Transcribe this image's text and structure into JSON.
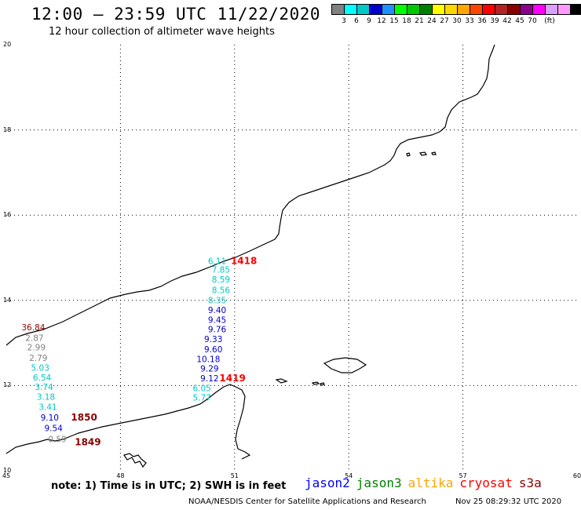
{
  "header": {
    "title": "12:00 — 23:59 UTC 11/22/2020",
    "subtitle": "12 hour collection of altimeter wave heights"
  },
  "legend": {
    "unit": "(ft)",
    "colors": [
      "#808080",
      "#00ffff",
      "#00c8c8",
      "#0000cd",
      "#1e90ff",
      "#00ff00",
      "#00c800",
      "#008000",
      "#ffff00",
      "#ffd700",
      "#ffa500",
      "#ff4500",
      "#ff0000",
      "#b22222",
      "#8b0000",
      "#8b008b",
      "#ff00ff",
      "#d8a0ff",
      "#ff99ff",
      "#000000"
    ],
    "labels": [
      "3",
      "6",
      "9",
      "12",
      "15",
      "18",
      "21",
      "24",
      "27",
      "30",
      "33",
      "36",
      "39",
      "42",
      "45",
      "70"
    ]
  },
  "axes": {
    "lat_labels": [
      "20",
      "18",
      "16",
      "14",
      "12",
      "10"
    ],
    "lon_labels": [
      "45",
      "48",
      "51",
      "54",
      "57",
      "60"
    ],
    "lat_range": [
      10,
      20
    ],
    "lon_range": [
      45,
      60
    ]
  },
  "tracks": [
    {
      "time": "1418",
      "time_color": "#ff0000",
      "points": [
        {
          "lon": 50.3,
          "lat": 14.85,
          "value": "6.11",
          "color": "#00c8c8"
        },
        {
          "lon": 50.4,
          "lat": 14.65,
          "value": "7.85",
          "color": "#00c8c8"
        },
        {
          "lon": 50.4,
          "lat": 14.42,
          "value": "8.59",
          "color": "#00c8c8"
        },
        {
          "lon": 50.4,
          "lat": 14.17,
          "value": "8.56",
          "color": "#00c8c8"
        },
        {
          "lon": 50.3,
          "lat": 13.93,
          "value": "8.35",
          "color": "#00c8c8"
        },
        {
          "lon": 50.3,
          "lat": 13.7,
          "value": "9.40",
          "color": "#0000cd"
        },
        {
          "lon": 50.3,
          "lat": 13.47,
          "value": "9.45",
          "color": "#0000cd"
        },
        {
          "lon": 50.3,
          "lat": 13.25,
          "value": "9.76",
          "color": "#0000cd"
        },
        {
          "lon": 50.2,
          "lat": 13.02,
          "value": "9.33",
          "color": "#0000cd"
        },
        {
          "lon": 50.2,
          "lat": 12.78,
          "value": "9.60",
          "color": "#0000cd"
        },
        {
          "lon": 50.0,
          "lat": 12.55,
          "value": "10.18",
          "color": "#0000cd"
        },
        {
          "lon": 50.1,
          "lat": 12.33,
          "value": "9.29",
          "color": "#0000cd"
        },
        {
          "lon": 50.1,
          "lat": 12.1,
          "value": "9.12",
          "color": "#0000cd"
        },
        {
          "lon": 49.9,
          "lat": 11.87,
          "value": "6.05",
          "color": "#00c8c8"
        },
        {
          "lon": 49.9,
          "lat": 11.65,
          "value": "5.77",
          "color": "#00c8c8"
        }
      ]
    },
    {
      "time": "1419",
      "time_color": "#ff0000",
      "points": []
    },
    {
      "time": "1850",
      "time_color": "#8b0000",
      "points": [
        {
          "lon": 45.4,
          "lat": 13.3,
          "value": "36.84",
          "color": "#8b0000"
        },
        {
          "lon": 45.5,
          "lat": 13.05,
          "value": "2.87",
          "color": "#808080"
        },
        {
          "lon": 45.55,
          "lat": 12.83,
          "value": "2.99",
          "color": "#808080"
        },
        {
          "lon": 45.6,
          "lat": 12.58,
          "value": "2.79",
          "color": "#808080"
        },
        {
          "lon": 45.65,
          "lat": 12.35,
          "value": "5.03",
          "color": "#00c8c8"
        },
        {
          "lon": 45.7,
          "lat": 12.12,
          "value": "6.54",
          "color": "#00c8c8"
        },
        {
          "lon": 45.75,
          "lat": 11.9,
          "value": "3.74",
          "color": "#00c8c8"
        },
        {
          "lon": 45.8,
          "lat": 11.67,
          "value": "3.18",
          "color": "#00c8c8"
        },
        {
          "lon": 45.85,
          "lat": 11.43,
          "value": "3.41",
          "color": "#00c8c8"
        },
        {
          "lon": 45.9,
          "lat": 11.18,
          "value": "9.10",
          "color": "#0000cd"
        },
        {
          "lon": 46.0,
          "lat": 10.93,
          "value": "9.54",
          "color": "#0000cd"
        },
        {
          "lon": 46.1,
          "lat": 10.67,
          "value": "0.59",
          "color": "#808080"
        }
      ]
    },
    {
      "time": "1849",
      "time_color": "#8b0000",
      "points": []
    }
  ],
  "footer": {
    "note": "note:  1) Time is in UTC;  2) SWH is in feet",
    "satellites": [
      {
        "name": "jason2",
        "color": "#0000ff"
      },
      {
        "name": "jason3",
        "color": "#008000"
      },
      {
        "name": "altika",
        "color": "#ffa500"
      },
      {
        "name": "cryosat",
        "color": "#ff0000"
      },
      {
        "name": "s3a",
        "color": "#8b0000"
      }
    ],
    "credit": "NOAA/NESDIS Center for Satellite Applications and Research",
    "timestamp": "Nov 25 08:29:32 UTC 2020"
  }
}
